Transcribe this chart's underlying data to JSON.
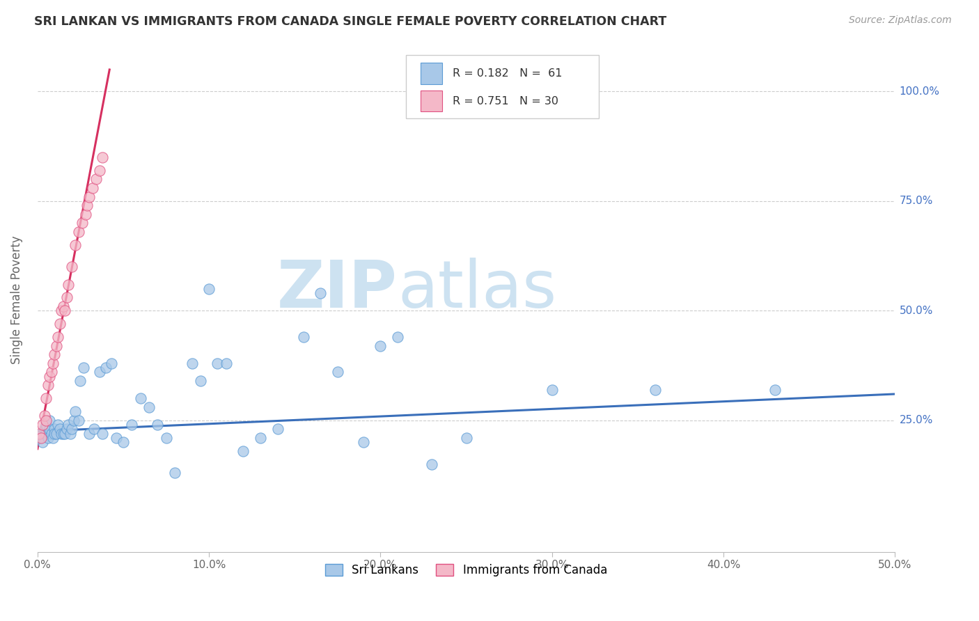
{
  "title": "SRI LANKAN VS IMMIGRANTS FROM CANADA SINGLE FEMALE POVERTY CORRELATION CHART",
  "source": "Source: ZipAtlas.com",
  "ylabel": "Single Female Poverty",
  "xlim": [
    0,
    0.5
  ],
  "ylim": [
    -0.05,
    1.1
  ],
  "legend_r1": "R = 0.182",
  "legend_n1": "N =  61",
  "legend_r2": "R = 0.751",
  "legend_n2": "N = 30",
  "color_blue_fill": "#a8c8e8",
  "color_blue_edge": "#5b9bd5",
  "color_pink_fill": "#f4b8c8",
  "color_pink_edge": "#e05080",
  "color_line_blue": "#3a6fba",
  "color_line_pink": "#d63060",
  "watermark_color": "#c8dff0",
  "background_color": "#ffffff",
  "grid_color": "#cccccc",
  "sl_x": [
    0.001,
    0.002,
    0.003,
    0.004,
    0.005,
    0.005,
    0.006,
    0.007,
    0.007,
    0.008,
    0.009,
    0.01,
    0.01,
    0.011,
    0.012,
    0.013,
    0.014,
    0.015,
    0.016,
    0.017,
    0.018,
    0.019,
    0.02,
    0.021,
    0.022,
    0.024,
    0.025,
    0.027,
    0.03,
    0.033,
    0.036,
    0.038,
    0.04,
    0.043,
    0.046,
    0.05,
    0.055,
    0.06,
    0.065,
    0.07,
    0.075,
    0.08,
    0.09,
    0.095,
    0.1,
    0.105,
    0.11,
    0.12,
    0.13,
    0.14,
    0.155,
    0.165,
    0.175,
    0.19,
    0.2,
    0.21,
    0.23,
    0.25,
    0.3,
    0.36,
    0.43
  ],
  "sl_y": [
    0.21,
    0.22,
    0.2,
    0.23,
    0.22,
    0.24,
    0.21,
    0.23,
    0.25,
    0.22,
    0.21,
    0.23,
    0.22,
    0.22,
    0.24,
    0.23,
    0.22,
    0.22,
    0.22,
    0.23,
    0.24,
    0.22,
    0.23,
    0.25,
    0.27,
    0.25,
    0.34,
    0.37,
    0.22,
    0.23,
    0.36,
    0.22,
    0.37,
    0.38,
    0.21,
    0.2,
    0.24,
    0.3,
    0.28,
    0.24,
    0.21,
    0.13,
    0.38,
    0.34,
    0.55,
    0.38,
    0.38,
    0.18,
    0.21,
    0.23,
    0.44,
    0.54,
    0.36,
    0.2,
    0.42,
    0.44,
    0.15,
    0.21,
    0.32,
    0.32,
    0.32
  ],
  "im_x": [
    0.001,
    0.002,
    0.003,
    0.004,
    0.005,
    0.005,
    0.006,
    0.007,
    0.008,
    0.009,
    0.01,
    0.011,
    0.012,
    0.013,
    0.014,
    0.015,
    0.016,
    0.017,
    0.018,
    0.02,
    0.022,
    0.024,
    0.026,
    0.028,
    0.029,
    0.03,
    0.032,
    0.034,
    0.036,
    0.038
  ],
  "im_y": [
    0.22,
    0.21,
    0.24,
    0.26,
    0.25,
    0.3,
    0.33,
    0.35,
    0.36,
    0.38,
    0.4,
    0.42,
    0.44,
    0.47,
    0.5,
    0.51,
    0.5,
    0.53,
    0.56,
    0.6,
    0.65,
    0.68,
    0.7,
    0.72,
    0.74,
    0.76,
    0.78,
    0.8,
    0.82,
    0.85
  ],
  "sl_line_x": [
    0.0,
    0.5
  ],
  "sl_line_y": [
    0.225,
    0.31
  ],
  "im_line_x": [
    0.0,
    0.042
  ],
  "im_line_y": [
    0.185,
    1.05
  ]
}
